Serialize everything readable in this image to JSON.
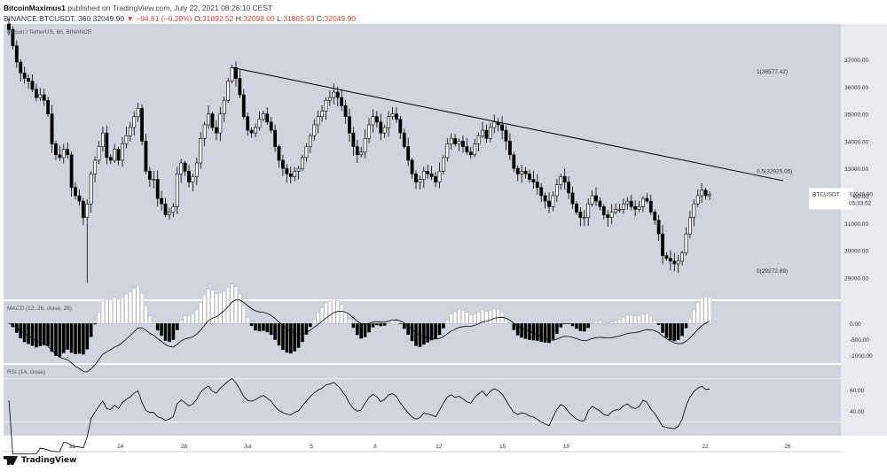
{
  "header": {
    "author": "BitcoinMaximus1",
    "published_text": "published on TradingView.com, July 22, 2021 08:26:10 CEST",
    "symbol": "BINANCE:BTCUSDT, 360",
    "last": "32049.90",
    "change": "▼ −94.61 (−0.29%)",
    "o_label": "O:",
    "o": "31892.52",
    "h_label": "H:",
    "h": "32098.00",
    "l_label": "L:",
    "l": "31865.93",
    "c_label": "C:",
    "c": "32049.90"
  },
  "footer": {
    "brand": "TradingView"
  },
  "colors": {
    "pane_bg": "#d1d4dc",
    "up_body": "#ffffff",
    "down_body": "#000000",
    "trendline": "#000000",
    "macd_hist_neg": "#000000",
    "macd_hist_pos": "#ffffff",
    "rsi_line": "#000000",
    "price_tag_bg": "#ffffff"
  },
  "chart_data": [
    {
      "type": "candlestick",
      "title": "Bitcoin / TetherUS, 6h, BINANCE",
      "xlabel": "",
      "ylabel": "",
      "x_tick_labels": [
        "21",
        "24",
        "28",
        "Jul",
        "5",
        "8",
        "12",
        "15",
        "19",
        "22",
        "26"
      ],
      "y_tick_labels": [
        "37000.00",
        "36000.00",
        "35000.00",
        "34000.00",
        "33000.00",
        "32000.00",
        "31000.00",
        "30000.00",
        "29000.00"
      ],
      "ylim": [
        28200,
        38300
      ],
      "grid": false,
      "closes": [
        38100,
        37500,
        36900,
        36500,
        36300,
        36200,
        35900,
        35600,
        35700,
        35500,
        35000,
        33900,
        33500,
        33400,
        33700,
        33500,
        32300,
        32000,
        31800,
        31200,
        31700,
        32800,
        33300,
        33800,
        34300,
        33400,
        33300,
        33700,
        33300,
        33900,
        34200,
        34500,
        34900,
        35200,
        34000,
        32900,
        32600,
        32600,
        31900,
        31700,
        31300,
        31400,
        31600,
        32800,
        33200,
        32900,
        32500,
        32700,
        33200,
        34100,
        34600,
        35000,
        34500,
        34300,
        35000,
        35500,
        36200,
        36700,
        36300,
        35700,
        34900,
        34400,
        34300,
        34500,
        34800,
        35000,
        34700,
        34400,
        33800,
        33300,
        33000,
        32800,
        32700,
        32900,
        33000,
        33400,
        33800,
        34200,
        34600,
        34900,
        35100,
        35500,
        35600,
        35800,
        35600,
        35300,
        34900,
        34300,
        33800,
        33500,
        33600,
        34100,
        34600,
        34900,
        34700,
        34300,
        34500,
        34900,
        35000,
        34800,
        34300,
        33800,
        33300,
        32800,
        32500,
        32600,
        32900,
        32800,
        32700,
        32500,
        32900,
        33400,
        33900,
        34100,
        33900,
        34000,
        33800,
        33600,
        33500,
        33900,
        34200,
        34400,
        34100,
        34500,
        34700,
        34600,
        34400,
        34000,
        33500,
        33000,
        32800,
        32900,
        32800,
        32600,
        32500,
        32300,
        32000,
        31800,
        31600,
        32000,
        32400,
        32700,
        32500,
        32100,
        31700,
        31400,
        31200,
        31200,
        31700,
        32000,
        31800,
        31600,
        31300,
        31200,
        31400,
        31500,
        31500,
        31700,
        31800,
        31600,
        31500,
        31600,
        31900,
        31800,
        31400,
        31100,
        30600,
        29800,
        29700,
        29600,
        29500,
        29600,
        29900,
        30600,
        31200,
        31700,
        32000,
        32200,
        32000,
        32049.9
      ],
      "annotations": [
        "1(36577.42)",
        "0.5(32925.05)",
        "0(29272.69)"
      ],
      "price_tag_symbol": "BTCUSDT",
      "price_tag_value": "32049.90",
      "price_tag_timer": "05:33:52"
    },
    {
      "type": "bar",
      "title": "MACD (12, 26, close, 26)",
      "xlabel": "",
      "ylabel": "",
      "y_tick_labels": [
        "0.00",
        "-500.00",
        "-1000.00"
      ],
      "ylim": [
        -1250,
        700
      ],
      "grid": false,
      "histogram_note": "derived from closes"
    },
    {
      "type": "line",
      "title": "RSI (14, close)",
      "xlabel": "",
      "ylabel": "",
      "y_tick_labels": [
        "60.00",
        "40.00"
      ],
      "ylim": [
        17,
        83
      ],
      "levels": [
        70,
        30
      ],
      "grid": false
    }
  ]
}
